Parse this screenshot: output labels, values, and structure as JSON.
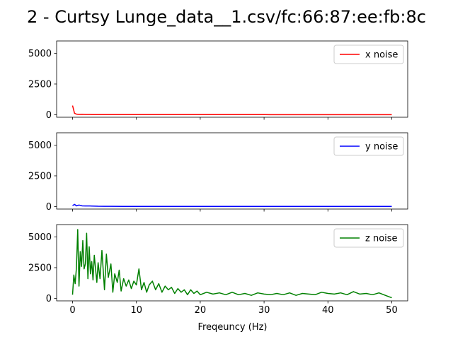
{
  "chart_data": {
    "type": "line",
    "title": "2 - Curtsy Lunge_data__1.csv/fc:66:87:ee:fb:8c",
    "xlabel": "Freqeuncy (Hz)",
    "xlim": [
      -2.5,
      52.5
    ],
    "x_ticks": [
      0,
      10,
      20,
      30,
      40,
      50
    ],
    "x_tick_labels": [
      "0",
      "10",
      "20",
      "30",
      "40",
      "50"
    ],
    "ylim": [
      -200,
      6000
    ],
    "y_ticks": [
      0,
      2500,
      5000
    ],
    "y_tick_labels": [
      "0",
      "2500",
      "5000"
    ],
    "shared_x": true,
    "legend_position": "top-right",
    "panels": [
      {
        "name": "x noise",
        "color": "#ff0000",
        "x": [
          0,
          0.3,
          0.6,
          1,
          1.5,
          2,
          3,
          4,
          5,
          6,
          8,
          10,
          15,
          20,
          25,
          30,
          35,
          40,
          45,
          50
        ],
        "values": [
          750,
          120,
          50,
          30,
          35,
          25,
          20,
          20,
          18,
          15,
          15,
          12,
          12,
          10,
          10,
          10,
          8,
          8,
          8,
          8
        ]
      },
      {
        "name": "y noise",
        "color": "#0000ff",
        "x": [
          0,
          0.3,
          0.6,
          1,
          1.5,
          2,
          3,
          4,
          5,
          6,
          8,
          10,
          15,
          20,
          25,
          30,
          35,
          40,
          45,
          50
        ],
        "values": [
          80,
          180,
          60,
          130,
          60,
          50,
          45,
          30,
          25,
          25,
          20,
          20,
          18,
          15,
          15,
          12,
          12,
          10,
          10,
          10
        ]
      },
      {
        "name": "z noise",
        "color": "#008000",
        "x": [
          0,
          0.2,
          0.4,
          0.6,
          0.8,
          1.0,
          1.2,
          1.4,
          1.6,
          1.8,
          2.0,
          2.2,
          2.4,
          2.6,
          2.8,
          3.0,
          3.2,
          3.4,
          3.6,
          3.8,
          4.0,
          4.3,
          4.6,
          5.0,
          5.3,
          5.6,
          6.0,
          6.3,
          6.6,
          7.0,
          7.3,
          7.6,
          8.0,
          8.4,
          8.8,
          9.2,
          9.6,
          10.0,
          10.4,
          10.8,
          11.2,
          11.6,
          12.0,
          12.5,
          13.0,
          13.5,
          14.0,
          14.5,
          15.0,
          15.5,
          16.0,
          16.5,
          17.0,
          17.5,
          18.0,
          18.5,
          19.0,
          19.5,
          20.0,
          21.0,
          22.0,
          23.0,
          24.0,
          25.0,
          26.0,
          27.0,
          28.0,
          29.0,
          30.0,
          31.0,
          32.0,
          33.0,
          34.0,
          35.0,
          36.0,
          37.0,
          38.0,
          39.0,
          40.0,
          41.0,
          42.0,
          43.0,
          44.0,
          45.0,
          46.0,
          47.0,
          48.0,
          49.0,
          49.5,
          50.0
        ],
        "values": [
          300,
          1900,
          1200,
          2500,
          5600,
          1000,
          3800,
          2600,
          4700,
          2400,
          2800,
          5300,
          1600,
          4200,
          2000,
          3000,
          1500,
          3500,
          2400,
          1300,
          2900,
          1600,
          3900,
          700,
          3600,
          1700,
          2800,
          500,
          2000,
          1300,
          2300,
          600,
          1600,
          1000,
          1500,
          800,
          1400,
          1100,
          2400,
          700,
          1300,
          500,
          1100,
          1400,
          700,
          1200,
          500,
          1000,
          700,
          900,
          400,
          800,
          500,
          700,
          300,
          700,
          400,
          600,
          300,
          500,
          350,
          450,
          300,
          500,
          300,
          400,
          250,
          450,
          350,
          300,
          400,
          300,
          450,
          250,
          400,
          350,
          300,
          500,
          400,
          350,
          450,
          300,
          550,
          350,
          400,
          300,
          450,
          250,
          150,
          50
        ]
      }
    ]
  }
}
